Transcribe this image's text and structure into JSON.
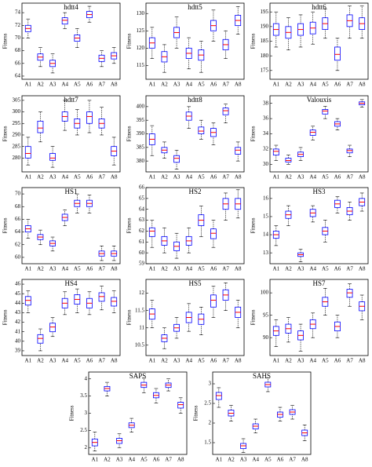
{
  "chart_data": [
    {
      "type": "box",
      "title": "hdtt4",
      "ylabel": "Fitness",
      "categories": [
        "A1",
        "A2",
        "A3",
        "A4",
        "A5",
        "A6",
        "A7",
        "A8"
      ],
      "ylim": [
        63.5,
        75.5
      ],
      "yticks": [
        64,
        66,
        68,
        70,
        72,
        74
      ],
      "box_color": "#0000ff",
      "median_color": "#ff0000",
      "values": [
        [
          70,
          71,
          71.5,
          72,
          73
        ],
        [
          65.5,
          66.5,
          67,
          67.5,
          68.5
        ],
        [
          64.5,
          65.5,
          66,
          66.5,
          67.5
        ],
        [
          71.5,
          72.2,
          72.8,
          73.2,
          74
        ],
        [
          68.5,
          69.5,
          70,
          70.5,
          71.5
        ],
        [
          72.5,
          73.2,
          73.7,
          74.2,
          75
        ],
        [
          65.5,
          66.3,
          66.8,
          67.3,
          68
        ],
        [
          66,
          66.7,
          67.2,
          67.7,
          68.5
        ]
      ]
    },
    {
      "type": "box",
      "title": "hdtt5",
      "ylabel": "Fitness",
      "categories": [
        "A1",
        "A2",
        "A3",
        "A4",
        "A5",
        "A6",
        "A7",
        "A8"
      ],
      "ylim": [
        111,
        133
      ],
      "yticks": [
        115,
        120,
        125,
        130
      ],
      "box_color": "#0000ff",
      "median_color": "#ff0000",
      "values": [
        [
          117,
          120,
          121.5,
          123,
          126
        ],
        [
          113,
          116,
          117.5,
          119,
          121
        ],
        [
          120,
          123,
          124.5,
          126,
          129
        ],
        [
          114,
          117,
          118.5,
          120,
          123
        ],
        [
          113,
          116.5,
          118,
          119.5,
          122
        ],
        [
          122,
          125,
          126.5,
          128,
          131
        ],
        [
          117,
          119.5,
          121,
          122.5,
          125
        ],
        [
          124,
          126.5,
          128,
          129.5,
          132
        ]
      ]
    },
    {
      "type": "box",
      "title": "hdtt6",
      "ylabel": "Fitness",
      "categories": [
        "A1",
        "A2",
        "A3",
        "A4",
        "A5",
        "A6",
        "A7",
        "A8"
      ],
      "ylim": [
        172,
        198
      ],
      "yticks": [
        175,
        180,
        185,
        190,
        195
      ],
      "box_color": "#0000ff",
      "median_color": "#ff0000",
      "values": [
        [
          183,
          187,
          189,
          191,
          195
        ],
        [
          182,
          186,
          188,
          190,
          193
        ],
        [
          183,
          187,
          189,
          191,
          194
        ],
        [
          184,
          187.5,
          189.5,
          191.5,
          195
        ],
        [
          186,
          189,
          191,
          193,
          196
        ],
        [
          175,
          178.5,
          180.5,
          183,
          186
        ],
        [
          186,
          190,
          192,
          194,
          197
        ],
        [
          186,
          189,
          191,
          193,
          197
        ]
      ]
    },
    {
      "type": "box",
      "title": "hdtt7",
      "ylabel": "Fitness",
      "categories": [
        "A1",
        "A2",
        "A3",
        "A4",
        "A5",
        "A6",
        "A7",
        "A8"
      ],
      "ylim": [
        274,
        307
      ],
      "yticks": [
        280,
        285,
        290,
        295,
        300,
        305
      ],
      "box_color": "#0000ff",
      "median_color": "#ff0000",
      "values": [
        [
          277,
          280,
          282,
          285,
          289
        ],
        [
          287,
          291,
          293,
          296,
          300
        ],
        [
          276,
          279,
          280,
          282,
          285
        ],
        [
          292,
          296,
          298,
          300,
          305
        ],
        [
          290,
          293,
          295,
          297,
          301
        ],
        [
          291,
          295,
          298,
          300,
          305
        ],
        [
          290,
          293,
          295,
          297,
          302
        ],
        [
          277,
          281,
          283,
          285,
          289
        ]
      ]
    },
    {
      "type": "box",
      "title": "hdtt8",
      "ylabel": "Fitness",
      "categories": [
        "A1",
        "A2",
        "A3",
        "A4",
        "A5",
        "A6",
        "A7",
        "A8"
      ],
      "ylim": [
        376,
        404
      ],
      "yticks": [
        380,
        385,
        390,
        395,
        400
      ],
      "box_color": "#0000ff",
      "median_color": "#ff0000",
      "values": [
        [
          382,
          386,
          388,
          390,
          393
        ],
        [
          381,
          383,
          384,
          385,
          387
        ],
        [
          377,
          379.5,
          381,
          382,
          384
        ],
        [
          392,
          395,
          396.5,
          398,
          400
        ],
        [
          388,
          390,
          391,
          392.5,
          395
        ],
        [
          386,
          389,
          390.5,
          392,
          394
        ],
        [
          394,
          397,
          398.5,
          399.5,
          401
        ],
        [
          380,
          382.5,
          384,
          385,
          387
        ]
      ]
    },
    {
      "type": "box",
      "title": "Valouxis",
      "ylabel": "Fitness",
      "categories": [
        "A1",
        "A2",
        "A3",
        "A4",
        "A5",
        "A6",
        "A7",
        "A8"
      ],
      "ylim": [
        29,
        39
      ],
      "yticks": [
        30,
        32,
        34,
        36,
        38
      ],
      "box_color": "#0000ff",
      "median_color": "#ff0000",
      "values": [
        [
          30.5,
          31.2,
          31.7,
          32,
          32.5
        ],
        [
          30,
          30.3,
          30.5,
          30.8,
          31.2
        ],
        [
          30.5,
          31,
          31.3,
          31.6,
          32.2
        ],
        [
          33.2,
          33.8,
          34.2,
          34.5,
          35
        ],
        [
          36,
          36.6,
          37,
          37.2,
          37.6
        ],
        [
          34.5,
          35,
          35.3,
          35.6,
          36
        ],
        [
          31,
          31.5,
          31.8,
          32,
          32.5
        ],
        [
          37.5,
          37.8,
          38,
          38.2,
          38.5
        ]
      ]
    },
    {
      "type": "box",
      "title": "HS1",
      "ylabel": "Fitness",
      "categories": [
        "A1",
        "A2",
        "A3",
        "A4",
        "A5",
        "A6",
        "A7",
        "A8"
      ],
      "ylim": [
        59,
        71
      ],
      "yticks": [
        60,
        62,
        64,
        66,
        68,
        70
      ],
      "box_color": "#0000ff",
      "median_color": "#ff0000",
      "values": [
        [
          63,
          64,
          64.5,
          65,
          66
        ],
        [
          62,
          62.8,
          63.2,
          63.6,
          64.3
        ],
        [
          61,
          61.8,
          62.2,
          62.6,
          63.2
        ],
        [
          65,
          65.8,
          66.3,
          66.8,
          67.5
        ],
        [
          67,
          68,
          68.5,
          69,
          70
        ],
        [
          67,
          68,
          68.5,
          69,
          69.8
        ],
        [
          59.5,
          60.2,
          60.6,
          61,
          61.8
        ],
        [
          59.5,
          60.2,
          60.6,
          61,
          61.8
        ]
      ]
    },
    {
      "type": "box",
      "title": "HS2",
      "ylabel": "Fitness",
      "categories": [
        "A1",
        "A2",
        "A3",
        "A4",
        "A5",
        "A6",
        "A7",
        "A8"
      ],
      "ylim": [
        59,
        66
      ],
      "yticks": [
        59,
        60,
        61,
        62,
        63,
        64,
        65,
        66
      ],
      "box_color": "#0000ff",
      "median_color": "#ff0000",
      "values": [
        [
          60.5,
          61.5,
          62,
          62.3,
          63
        ],
        [
          60,
          60.7,
          61.1,
          61.5,
          62.3
        ],
        [
          59.5,
          60.2,
          60.6,
          61,
          61.8
        ],
        [
          60,
          60.7,
          61.1,
          61.5,
          62.3
        ],
        [
          61.5,
          62.5,
          63,
          63.5,
          64.3
        ],
        [
          60.5,
          61.3,
          61.8,
          62.2,
          63
        ],
        [
          63,
          64,
          64.5,
          65,
          65.5
        ],
        [
          63.2,
          64,
          64.5,
          65,
          65.8
        ]
      ]
    },
    {
      "type": "box",
      "title": "HS3",
      "ylabel": "Fitness",
      "categories": [
        "A1",
        "A2",
        "A3",
        "A4",
        "A5",
        "A6",
        "A7",
        "A8"
      ],
      "ylim": [
        12.4,
        16.6
      ],
      "yticks": [
        13,
        14,
        15,
        16
      ],
      "box_color": "#0000ff",
      "median_color": "#ff0000",
      "values": [
        [
          13.4,
          13.8,
          14,
          14.2,
          14.5
        ],
        [
          14.5,
          14.9,
          15.1,
          15.3,
          15.6
        ],
        [
          12.5,
          12.8,
          12.9,
          13,
          13.2
        ],
        [
          14.7,
          15,
          15.2,
          15.4,
          15.6
        ],
        [
          13.6,
          14,
          14.2,
          14.4,
          14.8
        ],
        [
          15.2,
          15.5,
          15.7,
          15.9,
          16.1
        ],
        [
          14.8,
          15.1,
          15.3,
          15.5,
          15.8
        ],
        [
          15.3,
          15.6,
          15.8,
          16,
          16.3
        ]
      ]
    },
    {
      "type": "box",
      "title": "HS4",
      "ylabel": "Fitness",
      "categories": [
        "A1",
        "A2",
        "A3",
        "A4",
        "A5",
        "A6",
        "A7",
        "A8"
      ],
      "ylim": [
        38.5,
        46.5
      ],
      "yticks": [
        39,
        40,
        41,
        42,
        43,
        44,
        45,
        46
      ],
      "box_color": "#0000ff",
      "median_color": "#ff0000",
      "values": [
        [
          43,
          43.8,
          44.3,
          44.7,
          45.3
        ],
        [
          39,
          39.8,
          40.3,
          40.7,
          41.3
        ],
        [
          40.5,
          41,
          41.5,
          41.9,
          42.5
        ],
        [
          42.8,
          43.5,
          44,
          44.5,
          45.2
        ],
        [
          43,
          43.9,
          44.4,
          44.9,
          45.5
        ],
        [
          42.8,
          43.5,
          44,
          44.5,
          45.2
        ],
        [
          43.3,
          44.2,
          44.7,
          45.1,
          45.8
        ],
        [
          43,
          43.7,
          44.2,
          44.6,
          45.3
        ]
      ]
    },
    {
      "type": "box",
      "title": "HS5",
      "ylabel": "Fitness",
      "categories": [
        "A1",
        "A2",
        "A3",
        "A4",
        "A5",
        "A6",
        "A7",
        "A8"
      ],
      "ylim": [
        10.2,
        12.4
      ],
      "yticks": [
        10.5,
        11,
        11.5,
        12
      ],
      "box_color": "#0000ff",
      "median_color": "#ff0000",
      "values": [
        [
          11,
          11.25,
          11.4,
          11.55,
          11.8
        ],
        [
          10.4,
          10.6,
          10.7,
          10.8,
          11
        ],
        [
          10.7,
          10.9,
          11,
          11.1,
          11.3
        ],
        [
          10.9,
          11.15,
          11.3,
          11.45,
          11.7
        ],
        [
          10.8,
          11.1,
          11.25,
          11.4,
          11.6
        ],
        [
          11.3,
          11.6,
          11.8,
          11.95,
          12.2
        ],
        [
          11.5,
          11.8,
          11.95,
          12.1,
          12.3
        ],
        [
          11,
          11.3,
          11.45,
          11.6,
          11.8
        ]
      ]
    },
    {
      "type": "box",
      "title": "HS7",
      "ylabel": "Fitness",
      "categories": [
        "A1",
        "A2",
        "A3",
        "A4",
        "A5",
        "A6",
        "A7",
        "A8"
      ],
      "ylim": [
        86,
        103
      ],
      "yticks": [
        90,
        95,
        100
      ],
      "box_color": "#0000ff",
      "median_color": "#ff0000",
      "values": [
        [
          88,
          90.5,
          91.5,
          92.5,
          94
        ],
        [
          89,
          91,
          92,
          93,
          94.5
        ],
        [
          87,
          89.5,
          90.5,
          91.5,
          93
        ],
        [
          90,
          92,
          93,
          94,
          95.5
        ],
        [
          95,
          97,
          98,
          99,
          101
        ],
        [
          90,
          91.5,
          92.5,
          93.5,
          95
        ],
        [
          97,
          99,
          100,
          100.8,
          102
        ],
        [
          94,
          96,
          97,
          98,
          99.5
        ]
      ]
    },
    {
      "type": "box",
      "title": "SAPS",
      "ylabel": "Fitness",
      "categories": [
        "A1",
        "A2",
        "A3",
        "A4",
        "A5",
        "A6",
        "A7",
        "A8"
      ],
      "ylim": [
        1.8,
        4.2
      ],
      "yticks": [
        2,
        2.5,
        3,
        3.5,
        4
      ],
      "box_color": "#0000ff",
      "median_color": "#ff0000",
      "values": [
        [
          1.9,
          2.05,
          2.15,
          2.25,
          2.45
        ],
        [
          3.5,
          3.65,
          3.72,
          3.78,
          3.9
        ],
        [
          2,
          2.12,
          2.2,
          2.27,
          2.4
        ],
        [
          2.45,
          2.58,
          2.65,
          2.72,
          2.85
        ],
        [
          3.6,
          3.75,
          3.82,
          3.9,
          4.02
        ],
        [
          3.3,
          3.45,
          3.52,
          3.6,
          3.72
        ],
        [
          3.65,
          3.75,
          3.82,
          3.88,
          4
        ],
        [
          3,
          3.15,
          3.25,
          3.32,
          3.45
        ]
      ]
    },
    {
      "type": "box",
      "title": "SAHS",
      "ylabel": "Fitness",
      "categories": [
        "A1",
        "A2",
        "A3",
        "A4",
        "A5",
        "A6",
        "A7",
        "A8"
      ],
      "ylim": [
        1.2,
        3.3
      ],
      "yticks": [
        1.5,
        2,
        2.5,
        3
      ],
      "box_color": "#0000ff",
      "median_color": "#ff0000",
      "values": [
        [
          2.4,
          2.6,
          2.7,
          2.78,
          2.9
        ],
        [
          2.05,
          2.18,
          2.25,
          2.33,
          2.45
        ],
        [
          1.25,
          1.35,
          1.42,
          1.48,
          1.6
        ],
        [
          1.75,
          1.85,
          1.92,
          1.98,
          2.1
        ],
        [
          2.8,
          2.92,
          2.98,
          3.04,
          3.15
        ],
        [
          2.05,
          2.15,
          2.22,
          2.28,
          2.4
        ],
        [
          2.1,
          2.22,
          2.28,
          2.34,
          2.45
        ],
        [
          1.55,
          1.68,
          1.75,
          1.82,
          1.95
        ]
      ]
    }
  ]
}
